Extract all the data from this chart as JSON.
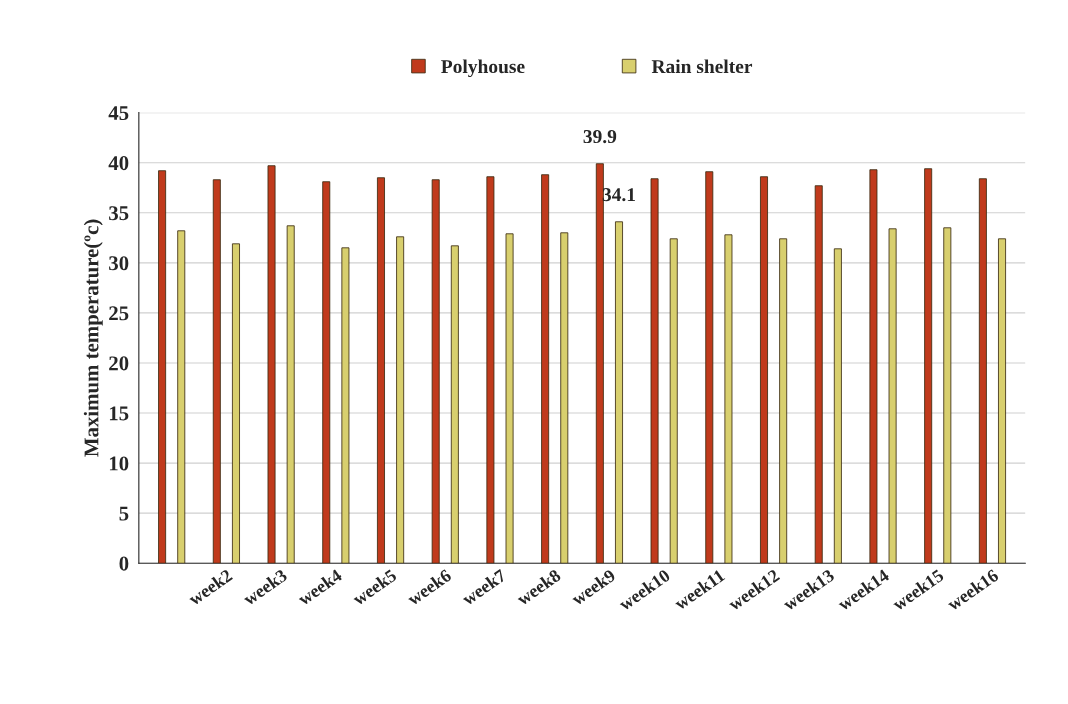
{
  "chart_data": {
    "type": "bar",
    "ylabel": "Maximum temperature(ºc)",
    "categories": [
      null,
      "week2",
      "week3",
      "week4",
      "week5",
      "week6",
      "week7",
      "week8",
      "week9",
      "week10",
      "week11",
      "week12",
      "week13",
      "week14",
      "week15",
      "week16"
    ],
    "series": [
      {
        "name": "Polyhouse",
        "color": "#c03a1c",
        "values": [
          39.2,
          38.3,
          39.7,
          38.1,
          38.5,
          38.3,
          38.6,
          38.8,
          39.9,
          38.4,
          39.1,
          38.6,
          37.7,
          39.3,
          39.4,
          38.4
        ],
        "value_labels": [
          null,
          null,
          null,
          null,
          null,
          null,
          null,
          null,
          "39.9",
          null,
          null,
          null,
          null,
          null,
          null,
          null
        ]
      },
      {
        "name": "Rain shelter",
        "color": "#d8cf6e",
        "values": [
          33.2,
          31.9,
          33.7,
          31.5,
          32.6,
          31.7,
          32.9,
          33.0,
          34.1,
          32.4,
          32.8,
          32.4,
          31.4,
          33.4,
          33.5,
          32.4
        ],
        "value_labels": [
          null,
          null,
          null,
          null,
          null,
          null,
          null,
          null,
          "34.1",
          null,
          null,
          null,
          null,
          null,
          null,
          null
        ]
      }
    ],
    "ylim": [
      0,
      45
    ],
    "yticks": [
      0,
      5,
      10,
      15,
      20,
      25,
      30,
      35,
      40,
      45
    ],
    "grid": "y",
    "legend": "top"
  }
}
